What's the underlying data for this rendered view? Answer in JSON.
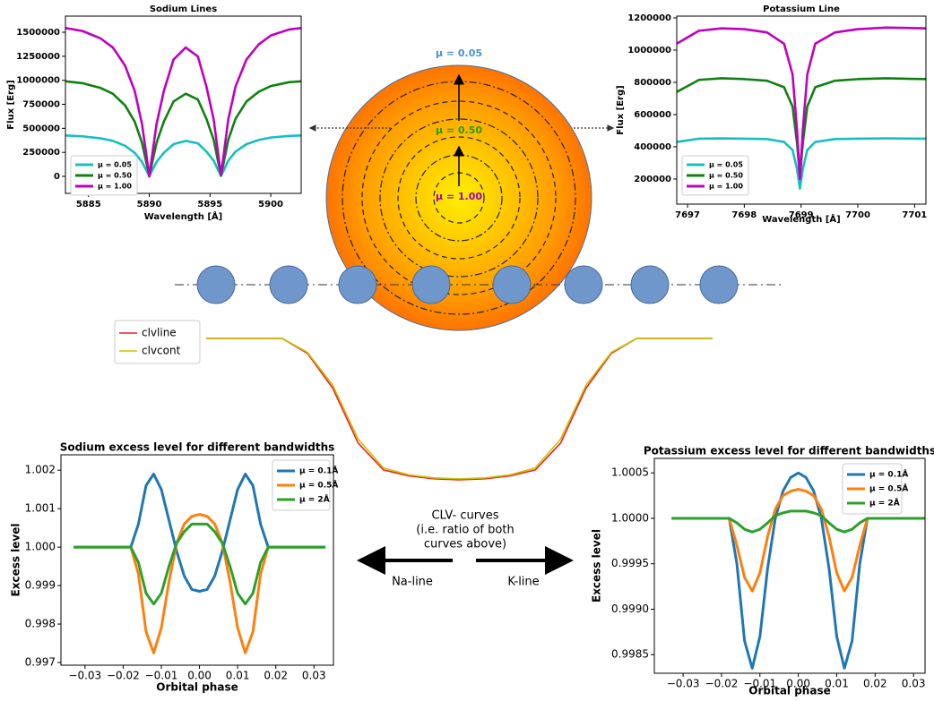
{
  "chart_data": [
    {
      "type": "line",
      "title": "Sodium  Lines",
      "x_label": "Wavelength [Å]",
      "y_label": "Flux [Erg]",
      "x": [
        5883.1,
        5884.5,
        5886,
        5887,
        5888,
        5888.8,
        5889.4,
        5889.8,
        5890,
        5890.2,
        5890.6,
        5891.2,
        5892,
        5893,
        5894,
        5894.7,
        5895.3,
        5895.7,
        5895.9,
        5896.1,
        5896.5,
        5897.1,
        5898,
        5899,
        5900,
        5901.5,
        5902.5
      ],
      "series": [
        {
          "name": "μ = 0.05",
          "color": "#17bfbf",
          "values": [
            425700,
            417100,
            395600,
            369800,
            318200,
            245100,
            150500,
            51600,
            0,
            51600,
            150500,
            245100,
            335400,
            369800,
            344000,
            258000,
            163400,
            55900,
            4300,
            55900,
            163400,
            258000,
            335400,
            378400,
            404200,
            421400,
            425700
          ]
        },
        {
          "name": "μ = 0.50",
          "color": "#108010",
          "values": [
            990000,
            970000,
            920000,
            860000,
            740000,
            570000,
            350000,
            120000,
            0,
            120000,
            350000,
            570000,
            780000,
            860000,
            800000,
            600000,
            380000,
            130000,
            10000,
            130000,
            380000,
            600000,
            780000,
            880000,
            940000,
            980000,
            990000
          ]
        },
        {
          "name": "μ = 1.00",
          "color": "#bf00bf",
          "values": [
            1544400,
            1513200,
            1435200,
            1341600,
            1154400,
            889200,
            546000,
            187200,
            0,
            187200,
            546000,
            889200,
            1216800,
            1341600,
            1248000,
            936000,
            592800,
            202800,
            15600,
            202800,
            592800,
            936000,
            1216800,
            1372800,
            1466400,
            1528800,
            1544400
          ]
        }
      ],
      "xlim": [
        5883.1,
        5902.5
      ],
      "xticks": [
        5885,
        5890,
        5895,
        5900
      ],
      "ylim": [
        -177000,
        1668000
      ],
      "yticks": [
        0,
        250000,
        500000,
        750000,
        1000000,
        1250000,
        1500000
      ]
    },
    {
      "type": "line",
      "title": "Potassium Line",
      "x_label": "Wavelength [Å]",
      "y_label": "Flux [Erg]",
      "x": [
        7696.81,
        7697.2,
        7697.6,
        7698.0,
        7698.4,
        7698.7,
        7698.85,
        7698.93,
        7698.98,
        7699.03,
        7699.11,
        7699.25,
        7699.6,
        7700.0,
        7700.5,
        7701.2
      ],
      "series": [
        {
          "name": "μ = 0.05",
          "color": "#17bfbf",
          "values": [
            430000,
            450000,
            452000,
            450000,
            448000,
            430000,
            380000,
            260000,
            140000,
            260000,
            380000,
            430000,
            448000,
            450000,
            452000,
            450000
          ]
        },
        {
          "name": "μ = 0.50",
          "color": "#108010",
          "values": [
            740000,
            815000,
            825000,
            820000,
            810000,
            770000,
            650000,
            420000,
            210000,
            420000,
            650000,
            770000,
            810000,
            820000,
            825000,
            820000
          ]
        },
        {
          "name": "μ = 1.00",
          "color": "#bf00bf",
          "values": [
            1040000,
            1120000,
            1135000,
            1130000,
            1110000,
            1040000,
            850000,
            500000,
            200000,
            500000,
            850000,
            1040000,
            1110000,
            1130000,
            1140000,
            1135000
          ]
        }
      ],
      "xlim": [
        7696.81,
        7701.2
      ],
      "xticks": [
        7697,
        7698,
        7699,
        7700,
        7701
      ],
      "ylim": [
        44000,
        1211000
      ],
      "yticks": [
        200000,
        400000,
        600000,
        800000,
        1000000,
        1200000
      ]
    },
    {
      "type": "line",
      "series": [
        {
          "name": "clvline",
          "color": "#ee2020",
          "values": [
            1,
            1,
            1,
            1,
            0.9985,
            0.995,
            0.9895,
            0.9868,
            0.9862,
            0.9859,
            0.9858,
            0.9859,
            0.9862,
            0.9868,
            0.9895,
            0.995,
            0.9985,
            1,
            1,
            1,
            1
          ]
        },
        {
          "name": "clvcont",
          "color": "#c8c000",
          "values": [
            1,
            1,
            1,
            1,
            0.9986,
            0.9953,
            0.9899,
            0.987,
            0.9863,
            0.986,
            0.9859,
            0.986,
            0.9863,
            0.987,
            0.9899,
            0.9953,
            0.9986,
            1,
            1,
            1,
            1
          ]
        }
      ]
    },
    {
      "type": "line",
      "title": "Sodium excess level for different bandwidths",
      "x_label": "Orbital phase",
      "y_label": "Excess level",
      "x": [
        -0.033,
        -0.018,
        -0.016,
        -0.014,
        -0.012,
        -0.01,
        -0.008,
        -0.006,
        -0.004,
        -0.002,
        0,
        0.002,
        0.004,
        0.006,
        0.008,
        0.01,
        0.012,
        0.014,
        0.016,
        0.018,
        0.033
      ],
      "series": [
        {
          "name": "μ = 0.1Å",
          "color": "#1f77b4",
          "values": [
            1,
            1,
            1.0006,
            1.0016,
            1.0019,
            1.0015,
            1.0007,
            0.9999,
            0.99925,
            0.9989,
            0.99885,
            0.9989,
            0.99925,
            0.9999,
            1.0007,
            1.0015,
            1.0019,
            1.0016,
            1.0006,
            1,
            1
          ]
        },
        {
          "name": "μ = 0.5Å",
          "color": "#ff7f0e",
          "values": [
            1,
            1,
            0.9993,
            0.9978,
            0.99725,
            0.9979,
            0.9991,
            1.0001,
            1.0006,
            1.0008,
            1.00085,
            1.0008,
            1.0006,
            1.0001,
            0.9991,
            0.9979,
            0.99725,
            0.9978,
            0.9993,
            1,
            1
          ]
        },
        {
          "name": "μ = 2Å",
          "color": "#2ca02c",
          "values": [
            1,
            1,
            0.9996,
            0.9988,
            0.99852,
            0.9988,
            0.9995,
            1.0001,
            1.0004,
            1.0006,
            1.0006,
            1.0006,
            1.0004,
            1.0001,
            0.9995,
            0.9988,
            0.99852,
            0.9988,
            0.9996,
            1,
            1
          ]
        }
      ],
      "xlim": [
        -0.0363,
        0.0351
      ],
      "xticks": [
        {
          "value": -0.03,
          "label": "−0.03"
        },
        {
          "value": -0.02,
          "label": "−0.02"
        },
        {
          "value": -0.01,
          "label": "−0.01"
        },
        {
          "value": 0,
          "label": "0.00"
        },
        0.01,
        0.02,
        0.03
      ],
      "ylim": [
        0.99693,
        1.0024
      ],
      "yticks": [
        0.997,
        0.998,
        0.999,
        {
          "value": 1,
          "label": "1.000"
        },
        1.001,
        1.002
      ]
    },
    {
      "type": "line",
      "title": "Potassium excess level for different bandwidths",
      "x_label": "Orbital phase",
      "y_label": "Excess level",
      "x": [
        -0.033,
        -0.018,
        -0.016,
        -0.014,
        -0.012,
        -0.01,
        -0.008,
        -0.006,
        -0.004,
        -0.002,
        0,
        0.002,
        0.004,
        0.006,
        0.008,
        0.01,
        0.012,
        0.014,
        0.016,
        0.018,
        0.033
      ],
      "series": [
        {
          "name": "μ = 0.1Å",
          "color": "#1f77b4",
          "values": [
            1,
            1,
            0.9995,
            0.99865,
            0.99835,
            0.9987,
            0.99945,
            1,
            1.0003,
            1.00045,
            1.0005,
            1.00045,
            1.0003,
            1,
            0.99945,
            0.9987,
            0.99835,
            0.99865,
            0.9995,
            1,
            1
          ]
        },
        {
          "name": "μ = 0.5Å",
          "color": "#ff7f0e",
          "values": [
            1,
            1,
            0.9997,
            0.99935,
            0.9992,
            0.9994,
            0.9998,
            1.0001,
            1.00025,
            1.0003,
            1.00032,
            1.0003,
            1.00025,
            1.0001,
            0.9998,
            0.9994,
            0.9992,
            0.99935,
            0.9997,
            1,
            1
          ]
        },
        {
          "name": "μ = 2Å",
          "color": "#2ca02c",
          "values": [
            1,
            1,
            0.99995,
            0.99988,
            0.99985,
            0.99988,
            0.99995,
            1.00003,
            1.00006,
            1.00008,
            1.00008,
            1.00008,
            1.00006,
            1.00003,
            0.99995,
            0.99988,
            0.99985,
            0.99988,
            0.99995,
            1,
            1
          ]
        }
      ],
      "xlim": [
        -0.0375,
        0.033
      ],
      "xticks": [
        {
          "value": -0.03,
          "label": "−0.03"
        },
        {
          "value": -0.02,
          "label": "−0.02"
        },
        {
          "value": -0.01,
          "label": "−0.01"
        },
        {
          "value": 0,
          "label": "0.00"
        },
        0.01,
        0.02,
        0.03
      ],
      "ylim": [
        0.998295,
        1.00066
      ],
      "yticks": [
        0.9985,
        {
          "value": 0.999,
          "label": "0.9990"
        },
        0.9995,
        {
          "value": 1,
          "label": "1.0000"
        },
        1.0005
      ]
    }
  ],
  "diagram": {
    "mu_labels": [
      "μ = 0.05",
      "μ = 0.50",
      "μ = 1.00"
    ],
    "clv_note": [
      "CLV- curves",
      "(i.e. ratio of both",
      "curves above)"
    ],
    "na_label": "Na-line",
    "k_label": "K-line"
  }
}
